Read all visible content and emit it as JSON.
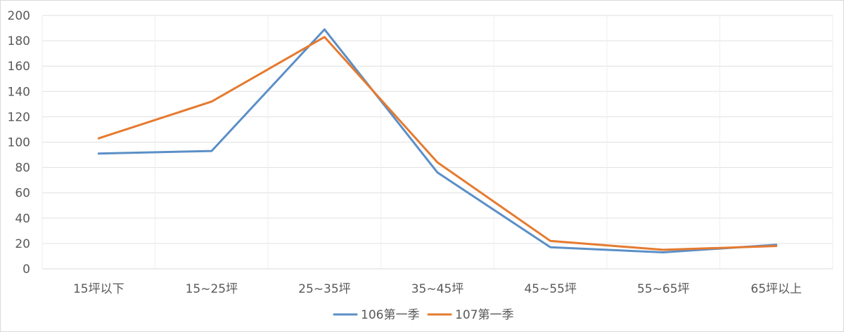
{
  "chart_data": {
    "type": "line",
    "title": "",
    "xlabel": "",
    "ylabel": "",
    "categories": [
      "15坪以下",
      "15~25坪",
      "25~35坪",
      "35~45坪",
      "45~55坪",
      "55~65坪",
      "65坪以上"
    ],
    "ylim": [
      0,
      200
    ],
    "yticks": [
      0,
      20,
      40,
      60,
      80,
      100,
      120,
      140,
      160,
      180,
      200
    ],
    "grid": true,
    "legend_position": "bottom",
    "series": [
      {
        "name": "106第一季",
        "color": "#5b8fc7",
        "values": [
          91,
          93,
          189,
          76,
          17,
          13,
          19
        ]
      },
      {
        "name": "107第一季",
        "color": "#e57a2f",
        "values": [
          103,
          132,
          183,
          84,
          22,
          15,
          18
        ]
      }
    ]
  }
}
